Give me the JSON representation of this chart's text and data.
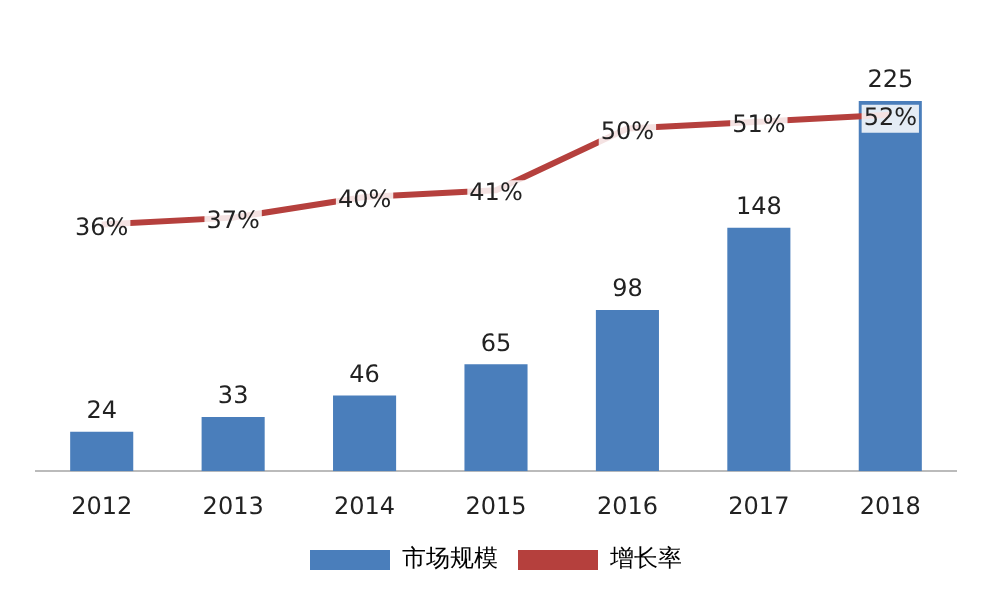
{
  "chart_data": {
    "type": "bar",
    "categories": [
      "2012",
      "2013",
      "2014",
      "2015",
      "2016",
      "2017",
      "2018"
    ],
    "series": [
      {
        "name": "市场规模",
        "color": "#4a7ebb",
        "values": [
          24,
          33,
          46,
          65,
          98,
          148,
          225
        ]
      },
      {
        "name": "增长率",
        "type": "line",
        "axis": "y2",
        "color": "#b5403d",
        "values": [
          36,
          37,
          40,
          41,
          50,
          51,
          52
        ],
        "value_labels": [
          "36%",
          "37%",
          "40%",
          "41%",
          "50%",
          "51%",
          "52%"
        ]
      }
    ],
    "tick_labels": "x",
    "grid": false,
    "legend": "bottom",
    "data_labels": true,
    "marker": "none",
    "line_style": "solid"
  }
}
